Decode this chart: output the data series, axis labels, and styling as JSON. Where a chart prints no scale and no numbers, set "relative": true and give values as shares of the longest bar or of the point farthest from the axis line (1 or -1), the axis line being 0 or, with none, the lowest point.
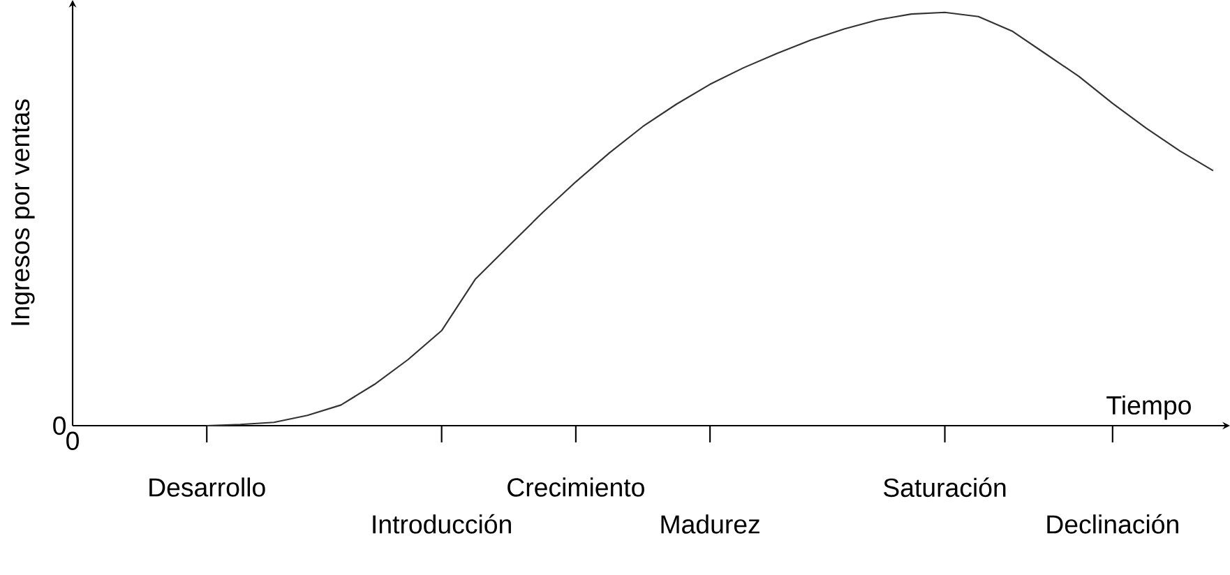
{
  "chart_data": {
    "type": "line",
    "relative": true,
    "xlabel": "Tiempo",
    "ylabel": "Ingresos por ventas",
    "color": "#333333",
    "marker": "none",
    "line_style": "solid",
    "categories": [
      null,
      null,
      null,
      null,
      "Desarrollo",
      null,
      null,
      null,
      null,
      null,
      null,
      "Introducción",
      null,
      null,
      null,
      "Crecimiento",
      null,
      null,
      null,
      "Madurez",
      null,
      null,
      null,
      null,
      null,
      null,
      "Saturación",
      null,
      null,
      null,
      null,
      "Declinación",
      null,
      null,
      null
    ],
    "values": [
      null,
      null,
      null,
      null,
      0,
      0.003,
      0.008,
      0.025,
      0.05,
      0.1,
      0.16,
      0.23,
      0.354,
      0.435,
      0.515,
      0.59,
      0.66,
      0.724,
      0.778,
      0.826,
      0.866,
      0.901,
      0.933,
      0.96,
      0.982,
      0.996,
      1.0,
      0.99,
      0.955,
      0.9,
      0.845,
      0.78,
      0.72,
      0.665,
      0.617
    ],
    "annotations": [
      "0",
      "0"
    ]
  }
}
